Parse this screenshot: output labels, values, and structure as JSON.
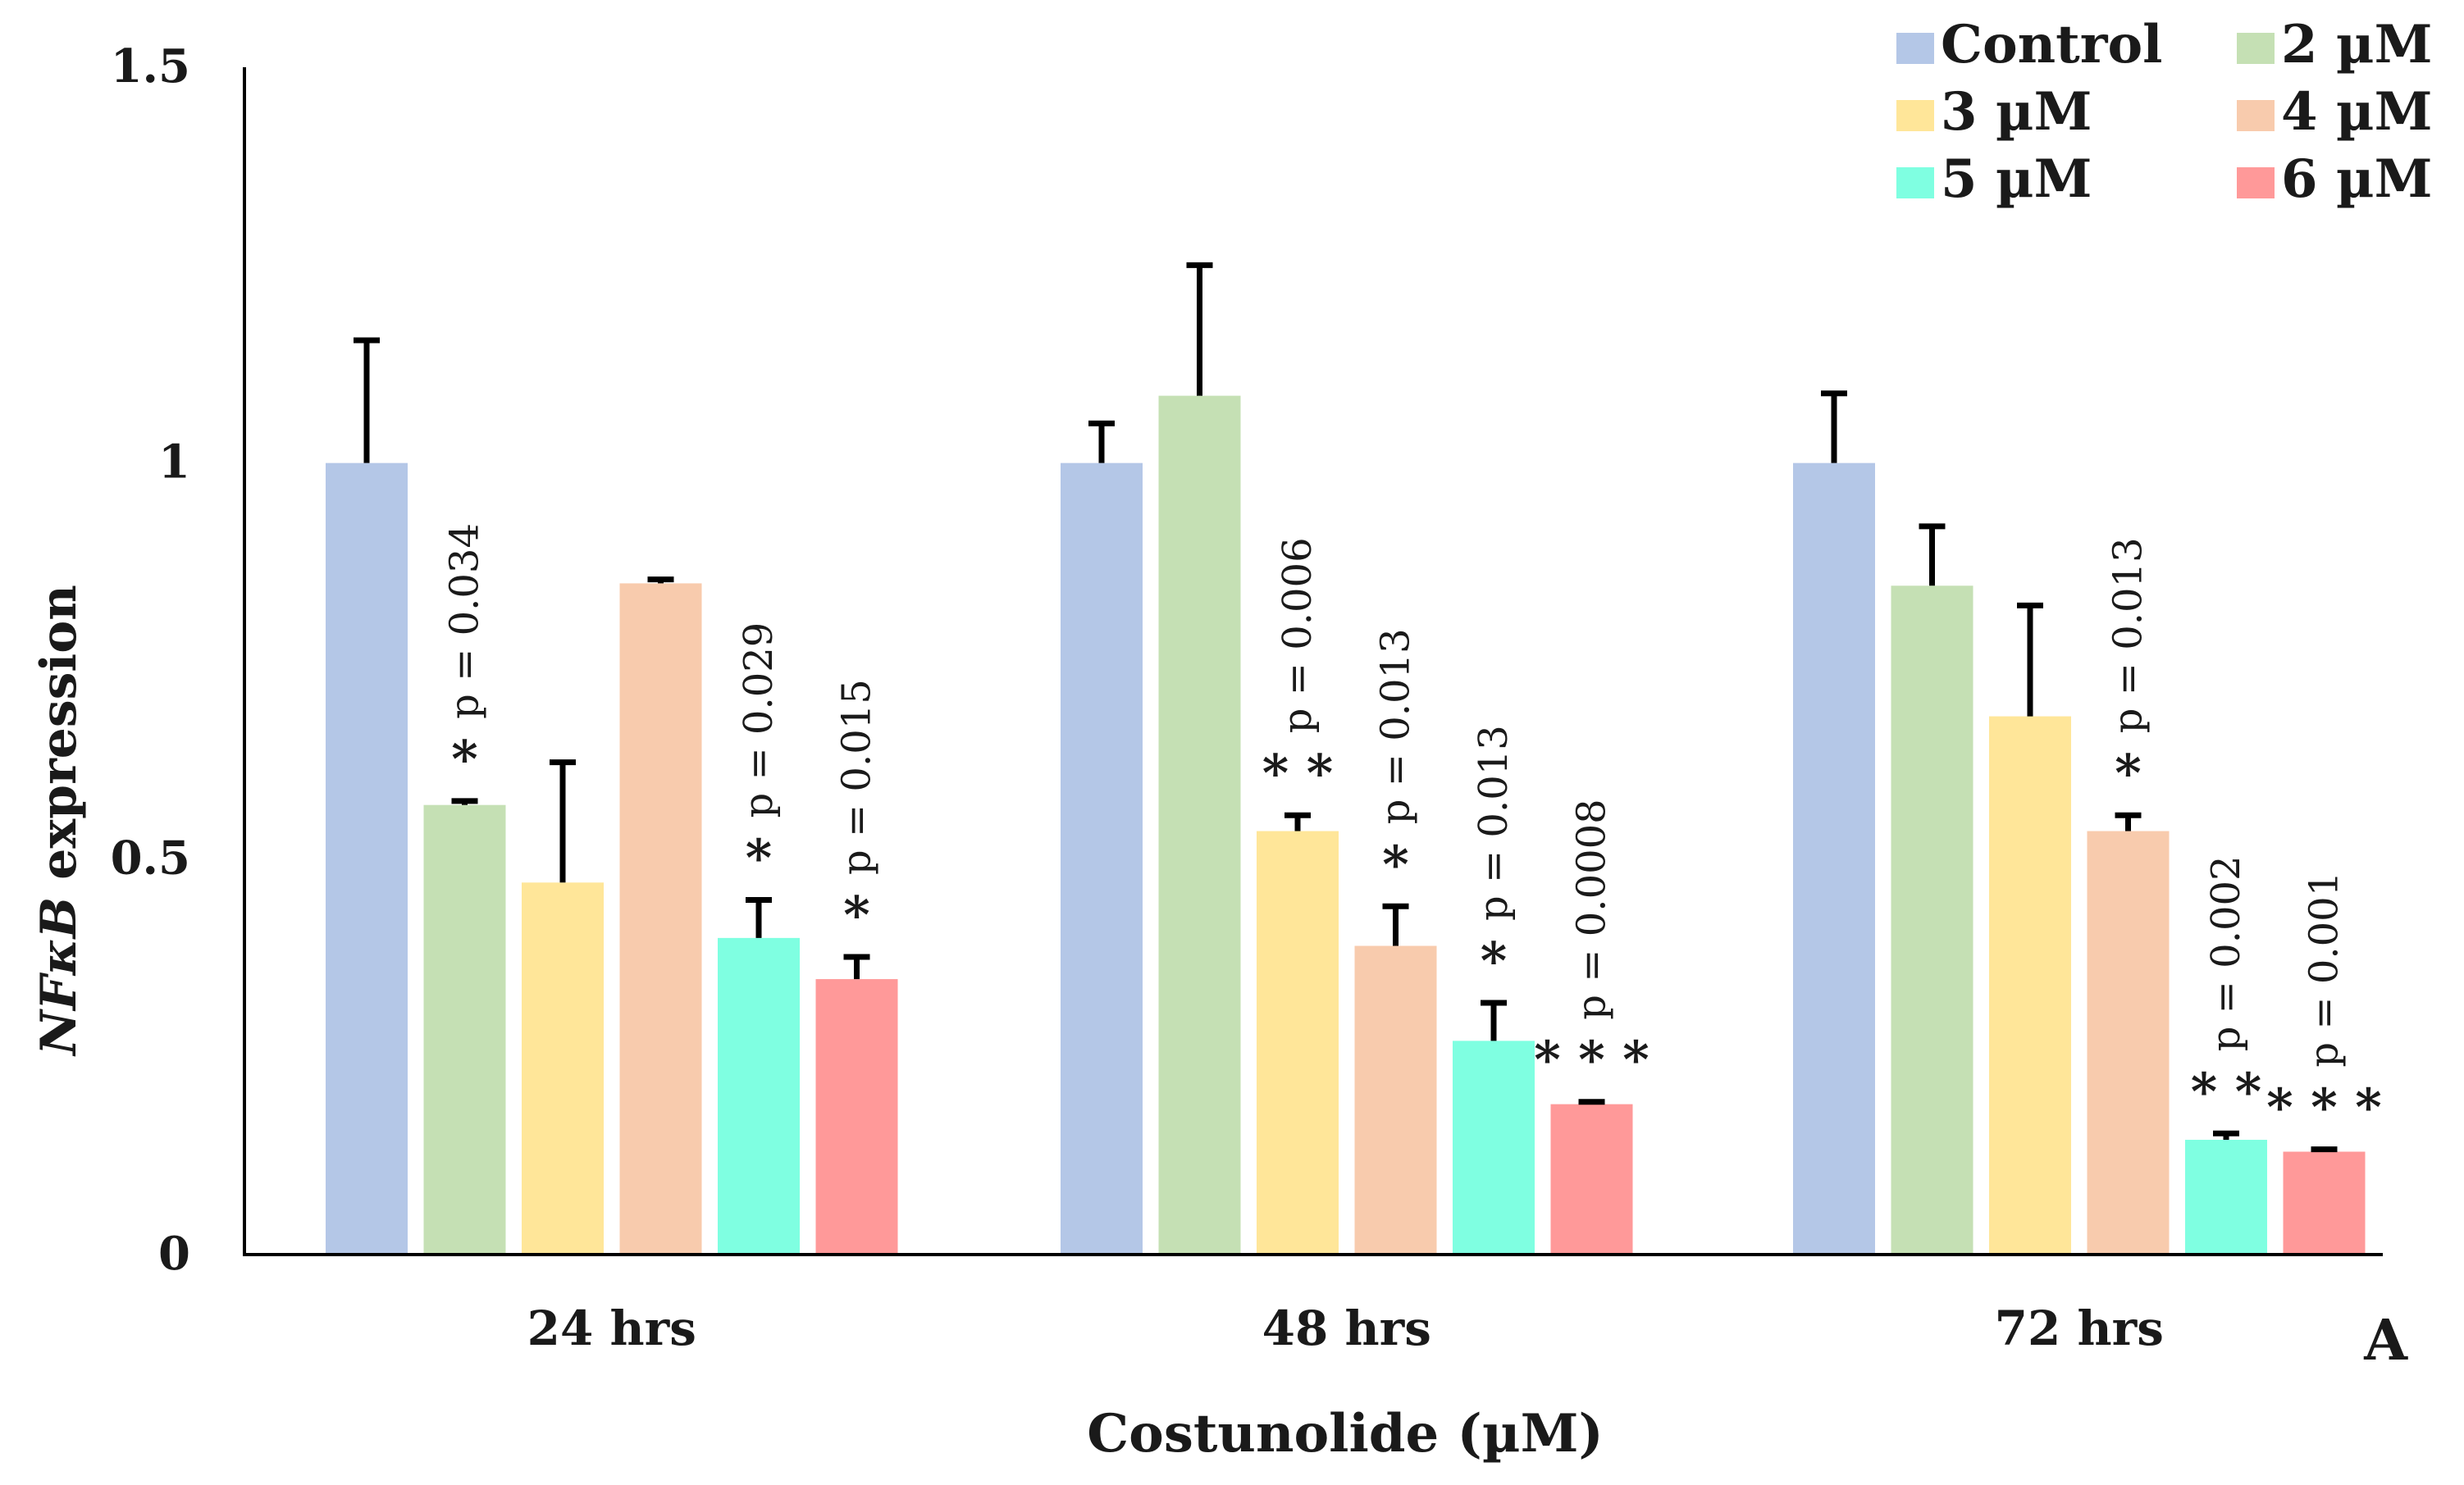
{
  "chart_data": {
    "type": "bar",
    "title": "",
    "panel_label": "A",
    "xlabel": "Costunolide (µM)",
    "ylabel": {
      "italic": "NFκB",
      "rest": " expression"
    },
    "ylim": [
      0,
      1.5
    ],
    "yticks": [
      0,
      0.5,
      1,
      1.5
    ],
    "ytick_labels": [
      "0",
      "0.5",
      "1",
      "1.5"
    ],
    "categories": [
      "24  hrs",
      "48 hrs",
      "72 hrs"
    ],
    "legend_position": "top-right",
    "series": [
      {
        "name": "Control",
        "color": "#b4c7e7",
        "values": [
          1.0,
          1.0,
          1.0
        ],
        "errors": [
          0.155,
          0.05,
          0.088
        ]
      },
      {
        "name": "2 µM",
        "color": "#c5e0b4",
        "values": [
          0.568,
          1.085,
          0.845
        ],
        "errors": [
          0.005,
          0.165,
          0.075
        ]
      },
      {
        "name": "3 µM",
        "color": "#ffe699",
        "values": [
          0.47,
          0.535,
          0.68
        ],
        "errors": [
          0.152,
          0.02,
          0.14
        ]
      },
      {
        "name": "4 µM",
        "color": "#f8cbad",
        "values": [
          0.848,
          0.39,
          0.535
        ],
        "errors": [
          0.005,
          0.05,
          0.02
        ]
      },
      {
        "name": "5 µM",
        "color": "#7fffe1",
        "values": [
          0.4,
          0.27,
          0.145
        ],
        "errors": [
          0.048,
          0.048,
          0.008
        ]
      },
      {
        "name": "6 µM",
        "color": "#ff9999",
        "values": [
          0.348,
          0.19,
          0.13
        ],
        "errors": [
          0.028,
          0.003,
          0.003
        ]
      }
    ],
    "annotations": [
      {
        "category": 0,
        "series": 1,
        "pvalue": "p = 0.034",
        "stars": "*"
      },
      {
        "category": 0,
        "series": 4,
        "pvalue": "p = 0.029",
        "stars": "*"
      },
      {
        "category": 0,
        "series": 5,
        "pvalue": "p = 0.015",
        "stars": "*"
      },
      {
        "category": 1,
        "series": 2,
        "pvalue": "p = 0.006",
        "stars": "**"
      },
      {
        "category": 1,
        "series": 3,
        "pvalue": "p = 0.013",
        "stars": "*"
      },
      {
        "category": 1,
        "series": 4,
        "pvalue": "p = 0.013",
        "stars": "*"
      },
      {
        "category": 1,
        "series": 5,
        "pvalue": "p = 0.0008",
        "stars": "***"
      },
      {
        "category": 2,
        "series": 3,
        "pvalue": "p = 0.013",
        "stars": "*"
      },
      {
        "category": 2,
        "series": 4,
        "pvalue": "p = 0.002",
        "stars": "**"
      },
      {
        "category": 2,
        "series": 5,
        "pvalue": "p = 0.001",
        "stars": "***"
      }
    ]
  }
}
